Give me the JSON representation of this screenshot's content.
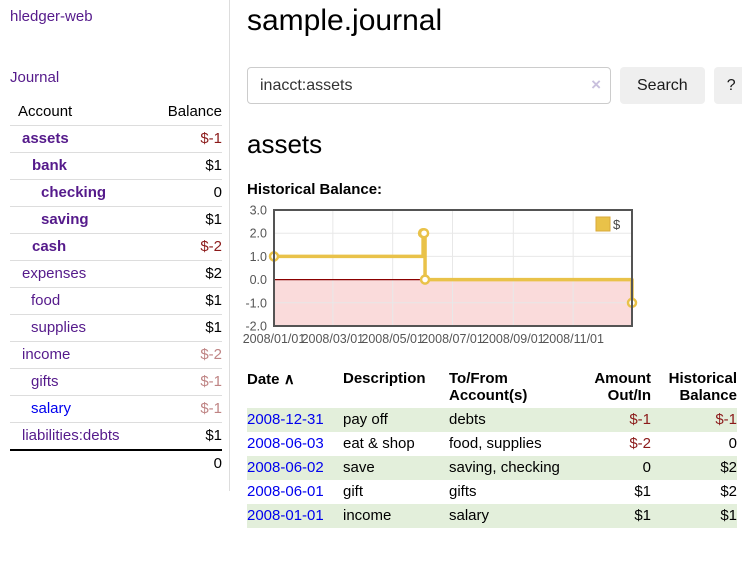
{
  "app": {
    "brand": "hledger-web",
    "nav": {
      "journal_label": "Journal"
    }
  },
  "sidebar": {
    "header": {
      "account": "Account",
      "balance": "Balance"
    },
    "accounts": [
      {
        "name": "assets",
        "balance": "$-1"
      },
      {
        "name": "bank",
        "balance": "$1"
      },
      {
        "name": "checking",
        "balance": "0"
      },
      {
        "name": "saving",
        "balance": "$1"
      },
      {
        "name": "cash",
        "balance": "$-2"
      },
      {
        "name": "expenses",
        "balance": "$2"
      },
      {
        "name": "food",
        "balance": "$1"
      },
      {
        "name": "supplies",
        "balance": "$1"
      },
      {
        "name": "income",
        "balance": "$-2"
      },
      {
        "name": "gifts",
        "balance": "$-1"
      },
      {
        "name": "salary",
        "balance": "$-1"
      },
      {
        "name": "liabilities:debts",
        "balance": "$1"
      }
    ],
    "total": "0"
  },
  "header": {
    "title": "sample.journal"
  },
  "search": {
    "value": "inacct:assets",
    "clear_icon": "×",
    "button_label": "Search",
    "help_label": "?"
  },
  "account_page": {
    "title": "assets",
    "chart_label": "Historical Balance:"
  },
  "chart_data": {
    "type": "line",
    "style": "steps",
    "series": [
      {
        "name": "$",
        "points": [
          [
            "2008-01-01",
            1
          ],
          [
            "2008-06-01",
            2
          ],
          [
            "2008-06-02",
            2
          ],
          [
            "2008-06-03",
            0
          ],
          [
            "2008-12-31",
            -1
          ]
        ]
      }
    ],
    "x_range": [
      "2008-01-01",
      "2008-12-31"
    ],
    "ylim": [
      -2,
      3
    ],
    "yticks": [
      3.0,
      2.0,
      1.0,
      0.0,
      -1.0,
      -2.0
    ],
    "xticks": [
      {
        "x": "2008-01-01",
        "label": "2008/01/01"
      },
      {
        "x": "2008-03-01",
        "label": "2008/03/01"
      },
      {
        "x": "2008-05-01",
        "label": "2008/05/01"
      },
      {
        "x": "2008-07-01",
        "label": "2008/07/01"
      },
      {
        "x": "2008-09-01",
        "label": "2008/09/01"
      },
      {
        "x": "2008-11-01",
        "label": "2008/11/01"
      }
    ],
    "grid": true,
    "legend_position": "top-right",
    "line_color": "#e9c249",
    "line_edge_color": "#d9a93a",
    "marker_fill": "#ffffff",
    "negative_region_color": "#fadbdb",
    "zero_line_color": "#8b0000",
    "grid_color": "#e8e8e8",
    "border_color": "#545454",
    "tick_color": "#555555"
  },
  "register": {
    "sort_icon": "∧",
    "columns": {
      "date": "Date",
      "description": "Description",
      "accounts": "To/From Account(s)",
      "amount": "Amount Out/In",
      "balance": "Historical Balance"
    },
    "rows": [
      {
        "date": "2008-12-31",
        "description": "pay off",
        "accounts": "debts",
        "amount": "$-1",
        "balance": "$-1"
      },
      {
        "date": "2008-06-03",
        "description": "eat & shop",
        "accounts": "food, supplies",
        "amount": "$-2",
        "balance": "0"
      },
      {
        "date": "2008-06-02",
        "description": "save",
        "accounts": "saving, checking",
        "amount": "0",
        "balance": "$2"
      },
      {
        "date": "2008-06-01",
        "description": "gift",
        "accounts": "gifts",
        "amount": "$1",
        "balance": "$2"
      },
      {
        "date": "2008-01-01",
        "description": "income",
        "accounts": "salary",
        "amount": "$1",
        "balance": "$1"
      }
    ]
  }
}
